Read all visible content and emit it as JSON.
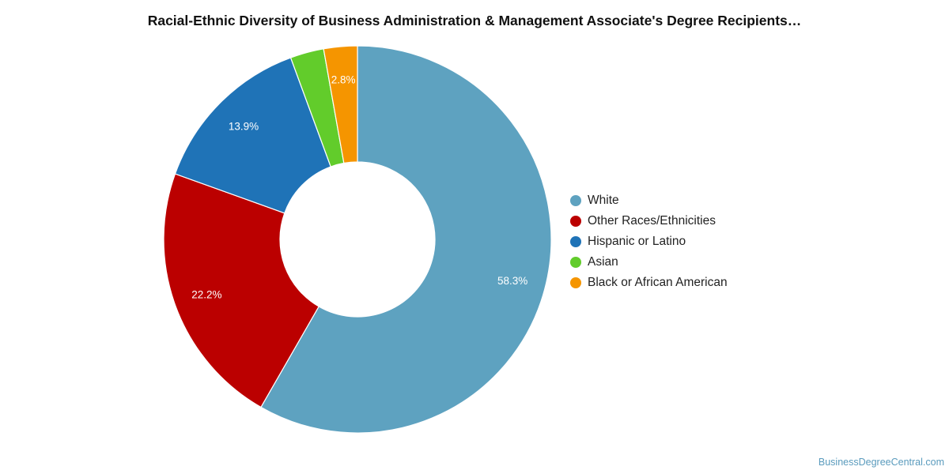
{
  "header": {
    "title": "Racial-Ethnic Diversity of Business Administration & Management Associate's Degree Recipients…"
  },
  "chart_data": {
    "type": "pie",
    "variant": "donut",
    "title": "Racial-Ethnic Diversity of Business Administration & Management Associate's Degree Recipients…",
    "legend_position": "right",
    "slices": [
      {
        "name": "White",
        "value": 58.3,
        "label": "58.3%",
        "color": "#5ea2c0"
      },
      {
        "name": "Other Races/Ethnicities",
        "value": 22.2,
        "label": "22.2%",
        "color": "#bb0000"
      },
      {
        "name": "Hispanic or Latino",
        "value": 13.9,
        "label": "13.9%",
        "color": "#1f73b7"
      },
      {
        "name": "Asian",
        "value": 2.8,
        "label": "",
        "color": "#62cc2b"
      },
      {
        "name": "Black or African American",
        "value": 2.8,
        "label": "2.8%",
        "color": "#f59500"
      }
    ]
  },
  "footer": {
    "source": "BusinessDegreeCentral.com"
  }
}
